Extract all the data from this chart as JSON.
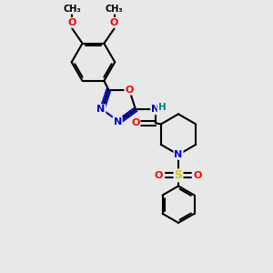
{
  "background_color": "#e8e8e8",
  "bond_color": "#000000",
  "bond_width": 1.5,
  "atom_colors": {
    "C": "#000000",
    "N": "#0000cc",
    "O": "#ff0000",
    "S": "#cccc00",
    "H": "#008080"
  },
  "figsize": [
    3.0,
    3.0
  ],
  "dpi": 100
}
